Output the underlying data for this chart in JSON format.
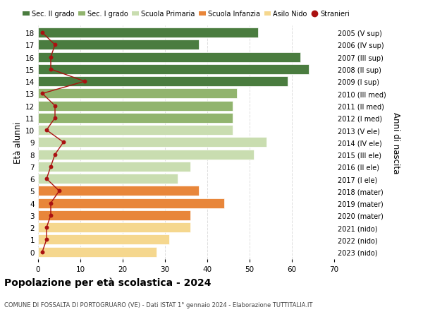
{
  "ages": [
    0,
    1,
    2,
    3,
    4,
    5,
    6,
    7,
    8,
    9,
    10,
    11,
    12,
    13,
    14,
    15,
    16,
    17,
    18
  ],
  "years": [
    "2023 (nido)",
    "2022 (nido)",
    "2021 (nido)",
    "2020 (mater)",
    "2019 (mater)",
    "2018 (mater)",
    "2017 (I ele)",
    "2016 (II ele)",
    "2015 (III ele)",
    "2014 (IV ele)",
    "2013 (V ele)",
    "2012 (I med)",
    "2011 (II med)",
    "2010 (III med)",
    "2009 (I sup)",
    "2008 (II sup)",
    "2007 (III sup)",
    "2006 (IV sup)",
    "2005 (V sup)"
  ],
  "values": [
    28,
    31,
    36,
    36,
    44,
    38,
    33,
    36,
    51,
    54,
    46,
    46,
    46,
    47,
    59,
    64,
    62,
    38,
    52
  ],
  "stranieri": [
    1,
    2,
    2,
    3,
    3,
    5,
    2,
    3,
    4,
    6,
    2,
    4,
    4,
    1,
    11,
    3,
    3,
    4,
    1
  ],
  "bar_colors": [
    "#f5d78e",
    "#f5d78e",
    "#f5d78e",
    "#e8863a",
    "#e8863a",
    "#e8863a",
    "#c9ddb0",
    "#c9ddb0",
    "#c9ddb0",
    "#c9ddb0",
    "#c9ddb0",
    "#91b46e",
    "#91b46e",
    "#91b46e",
    "#4a7c3f",
    "#4a7c3f",
    "#4a7c3f",
    "#4a7c3f",
    "#4a7c3f"
  ],
  "legend_labels": [
    "Sec. II grado",
    "Sec. I grado",
    "Scuola Primaria",
    "Scuola Infanzia",
    "Asilo Nido",
    "Stranieri"
  ],
  "legend_colors": [
    "#4a7c3f",
    "#91b46e",
    "#c9ddb0",
    "#e8863a",
    "#f5d78e",
    "#aa1111"
  ],
  "title": "Popolazione per età scolastica - 2024",
  "subtitle": "COMUNE DI FOSSALTA DI PORTOGRUARO (VE) - Dati ISTAT 1° gennaio 2024 - Elaborazione TUTTITALIA.IT",
  "ylabel_left": "Età alunni",
  "ylabel_right": "Anni di nascita",
  "xlim": [
    0,
    70
  ],
  "grid_color": "#dddddd",
  "stranieri_color": "#aa1111",
  "bar_height": 0.82
}
